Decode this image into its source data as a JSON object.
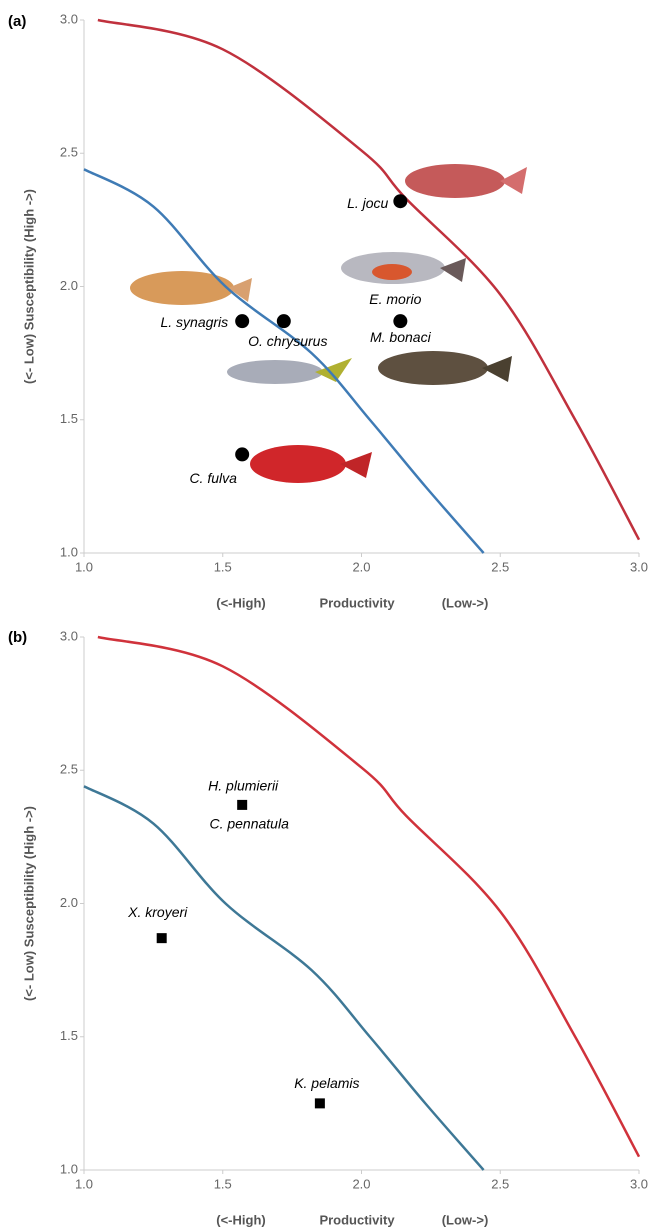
{
  "chart_data": [
    {
      "type": "scatter",
      "panel_label": "(a)",
      "y_label": "(<- Low) Susceptibility (High ->)",
      "x_labels": [
        "(<-High)",
        "Productivity",
        "(Low->)"
      ],
      "xlim": [
        1.0,
        3.0
      ],
      "ylim": [
        1.0,
        3.0
      ],
      "xticks": [
        {
          "value": 1,
          "label": "1.0"
        },
        {
          "value": 1.5,
          "label": "1.5"
        },
        {
          "value": 2,
          "label": "2.0"
        },
        {
          "value": 2.5,
          "label": "2.5"
        },
        {
          "value": 3,
          "label": "3.0"
        }
      ],
      "yticks": [
        {
          "value": 1,
          "label": "1.0"
        },
        {
          "value": 1.5,
          "label": "1.5"
        },
        {
          "value": 2,
          "label": "2.0"
        },
        {
          "value": 2.5,
          "label": "2.5"
        },
        {
          "value": 3,
          "label": "3.0"
        }
      ],
      "marker": "circle",
      "marker_color": "#000000",
      "points": {
        "x": [
          1.57,
          1.72,
          2.14,
          2.14,
          1.57
        ],
        "values": [
          1.87,
          1.87,
          1.87,
          2.32,
          1.37
        ],
        "labels": [
          [
            "L. synagris"
          ],
          [
            "O. chrysurus"
          ],
          [
            "E. morio",
            "M. bonaci"
          ],
          [
            "L. jocu"
          ],
          [
            "C. fulva"
          ]
        ]
      },
      "curves": [
        {
          "color": "#c0313d",
          "x": [
            1.05,
            1.5,
            2.0,
            2.16,
            2.5,
            2.77,
            3.0
          ],
          "values": [
            3.0,
            2.89,
            2.51,
            2.33,
            1.97,
            1.5,
            1.05
          ]
        },
        {
          "color": "#3f7bb5",
          "x": [
            1.0,
            1.25,
            1.51,
            1.82,
            2.03,
            2.23,
            2.44
          ],
          "values": [
            2.44,
            2.3,
            2.0,
            1.75,
            1.5,
            1.25,
            1.0
          ]
        }
      ]
    },
    {
      "type": "scatter",
      "panel_label": "(b)",
      "y_label": "(<- Low) Susceptibility (High ->)",
      "x_labels": [
        "(<-High)",
        "Productivity",
        "(Low->)"
      ],
      "xlim": [
        1.0,
        3.0
      ],
      "ylim": [
        1.0,
        3.0
      ],
      "xticks": [
        {
          "value": 1,
          "label": "1.0"
        },
        {
          "value": 1.5,
          "label": "1.5"
        },
        {
          "value": 2,
          "label": "2.0"
        },
        {
          "value": 2.5,
          "label": "2.5"
        },
        {
          "value": 3,
          "label": "3.0"
        }
      ],
      "yticks": [
        {
          "value": 1,
          "label": "1.0"
        },
        {
          "value": 1.5,
          "label": "1.5"
        },
        {
          "value": 2,
          "label": "2.0"
        },
        {
          "value": 2.5,
          "label": "2.5"
        },
        {
          "value": 3,
          "label": "3.0"
        }
      ],
      "marker": "square",
      "marker_color": "#000000",
      "points": {
        "x": [
          1.57,
          1.28,
          1.85
        ],
        "values": [
          2.37,
          1.87,
          1.25
        ],
        "labels": [
          [
            "H. plumierii",
            "C. pennatula"
          ],
          [
            "X. kroyeri"
          ],
          [
            "K. pelamis"
          ]
        ]
      },
      "curves": [
        {
          "color": "#d0323b",
          "x": [
            1.05,
            1.5,
            2.0,
            2.16,
            2.5,
            2.77,
            3.0
          ],
          "values": [
            3.0,
            2.89,
            2.51,
            2.33,
            1.97,
            1.5,
            1.05
          ]
        },
        {
          "color": "#3e7896",
          "x": [
            1.0,
            1.25,
            1.51,
            1.82,
            2.03,
            2.23,
            2.44
          ],
          "values": [
            2.44,
            2.3,
            2.0,
            1.75,
            1.5,
            1.25,
            1.0
          ]
        }
      ]
    }
  ]
}
